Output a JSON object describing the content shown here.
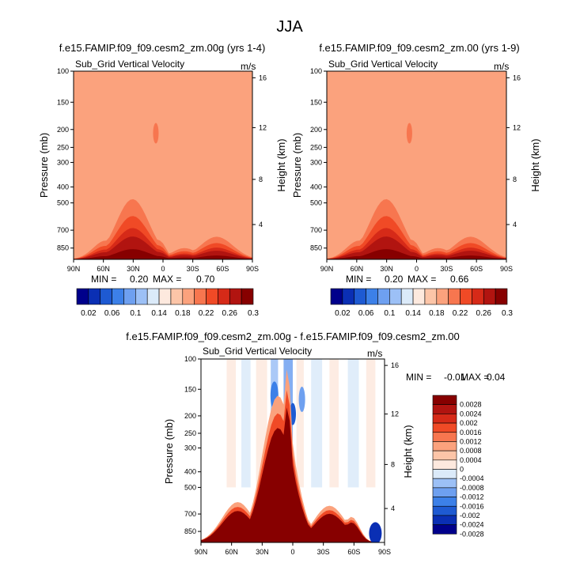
{
  "chart_data": {
    "type": "contour",
    "title": "JJA",
    "colors": {
      "abs": [
        "#00008b",
        "#0a2fb4",
        "#1e5ad2",
        "#3c80e8",
        "#6ea0f0",
        "#9cc0f6",
        "#dbeaf9",
        "#fde9de",
        "#fcc5a8",
        "#fba27d",
        "#f7764f",
        "#f04a26",
        "#d62a18",
        "#b11410",
        "#870000"
      ],
      "diff": [
        "#00008b",
        "#0a2fb4",
        "#1e5ad2",
        "#3c80e8",
        "#6ea0f0",
        "#9cc0f6",
        "#dbeaf9",
        "#fde9de",
        "#fcc5a8",
        "#fba27d",
        "#f7764f",
        "#f04a26",
        "#d62a18",
        "#b11410",
        "#870000"
      ]
    },
    "panels": [
      {
        "id": "top-left",
        "title": "f.e15.FAMIP.f09_f09.cesm2_zm.00g (yrs 1-4)",
        "variable": "Sub_Grid Vertical Velocity",
        "units": "m/s",
        "ylabel": "Pressure (mb)",
        "y2label": "Height (km)",
        "xticks": [
          "90N",
          "60N",
          "30N",
          "0",
          "30S",
          "60S",
          "90S"
        ],
        "yticks": [
          "100",
          "150",
          "200",
          "250",
          "300",
          "400",
          "500",
          "700",
          "850"
        ],
        "y2ticks": [
          "16",
          "12",
          "8",
          "4"
        ],
        "min_label": "MIN =",
        "min": "0.20",
        "max_label": "MAX =",
        "max": "0.70",
        "colorbar": {
          "labels": [
            "0.02",
            "0.06",
            "0.1",
            "0.14",
            "0.18",
            "0.22",
            "0.26",
            "0.3"
          ],
          "levels": [
            0.02,
            0.04,
            0.06,
            0.08,
            0.1,
            0.12,
            0.14,
            0.16,
            0.18,
            0.2,
            0.22,
            0.24,
            0.26,
            0.28,
            0.3
          ]
        }
      },
      {
        "id": "top-right",
        "title": "f.e15.FAMIP.f09_f09.cesm2_zm.00 (yrs 1-9)",
        "variable": "Sub_Grid Vertical Velocity",
        "units": "m/s",
        "ylabel": "Pressure (mb)",
        "y2label": "Height (km)",
        "xticks": [
          "90N",
          "60N",
          "30N",
          "0",
          "30S",
          "60S",
          "90S"
        ],
        "yticks": [
          "100",
          "150",
          "200",
          "250",
          "300",
          "400",
          "500",
          "700",
          "850"
        ],
        "y2ticks": [
          "16",
          "12",
          "8",
          "4"
        ],
        "min_label": "MIN =",
        "min": "0.20",
        "max_label": "MAX =",
        "max": "0.66",
        "colorbar": {
          "labels": [
            "0.02",
            "0.06",
            "0.1",
            "0.14",
            "0.18",
            "0.22",
            "0.26",
            "0.3"
          ],
          "levels": [
            0.02,
            0.04,
            0.06,
            0.08,
            0.1,
            0.12,
            0.14,
            0.16,
            0.18,
            0.2,
            0.22,
            0.24,
            0.26,
            0.28,
            0.3
          ]
        }
      },
      {
        "id": "bottom",
        "title": "f.e15.FAMIP.f09_f09.cesm2_zm.00g - f.e15.FAMIP.f09_f09.cesm2_zm.00",
        "variable": "Sub_Grid Vertical Velocity",
        "units": "m/s",
        "ylabel": "Pressure (mb)",
        "y2label": "Height (km)",
        "xticks": [
          "90N",
          "60N",
          "30N",
          "0",
          "30S",
          "60S",
          "90S"
        ],
        "yticks": [
          "100",
          "150",
          "200",
          "250",
          "300",
          "400",
          "500",
          "700",
          "850"
        ],
        "y2ticks": [
          "16",
          "12",
          "8",
          "4"
        ],
        "min_label": "MIN =",
        "min": "-0.01",
        "max_label": "MAX =",
        "max": "0.04",
        "colorbar": {
          "labels": [
            "0.0028",
            "0.0024",
            "0.002",
            "0.0016",
            "0.0012",
            "0.0008",
            "0.0004",
            "0",
            "-0.0004",
            "-0.0008",
            "-0.0012",
            "-0.0016",
            "-0.002",
            "-0.0024",
            "-0.0028"
          ]
        }
      }
    ]
  }
}
